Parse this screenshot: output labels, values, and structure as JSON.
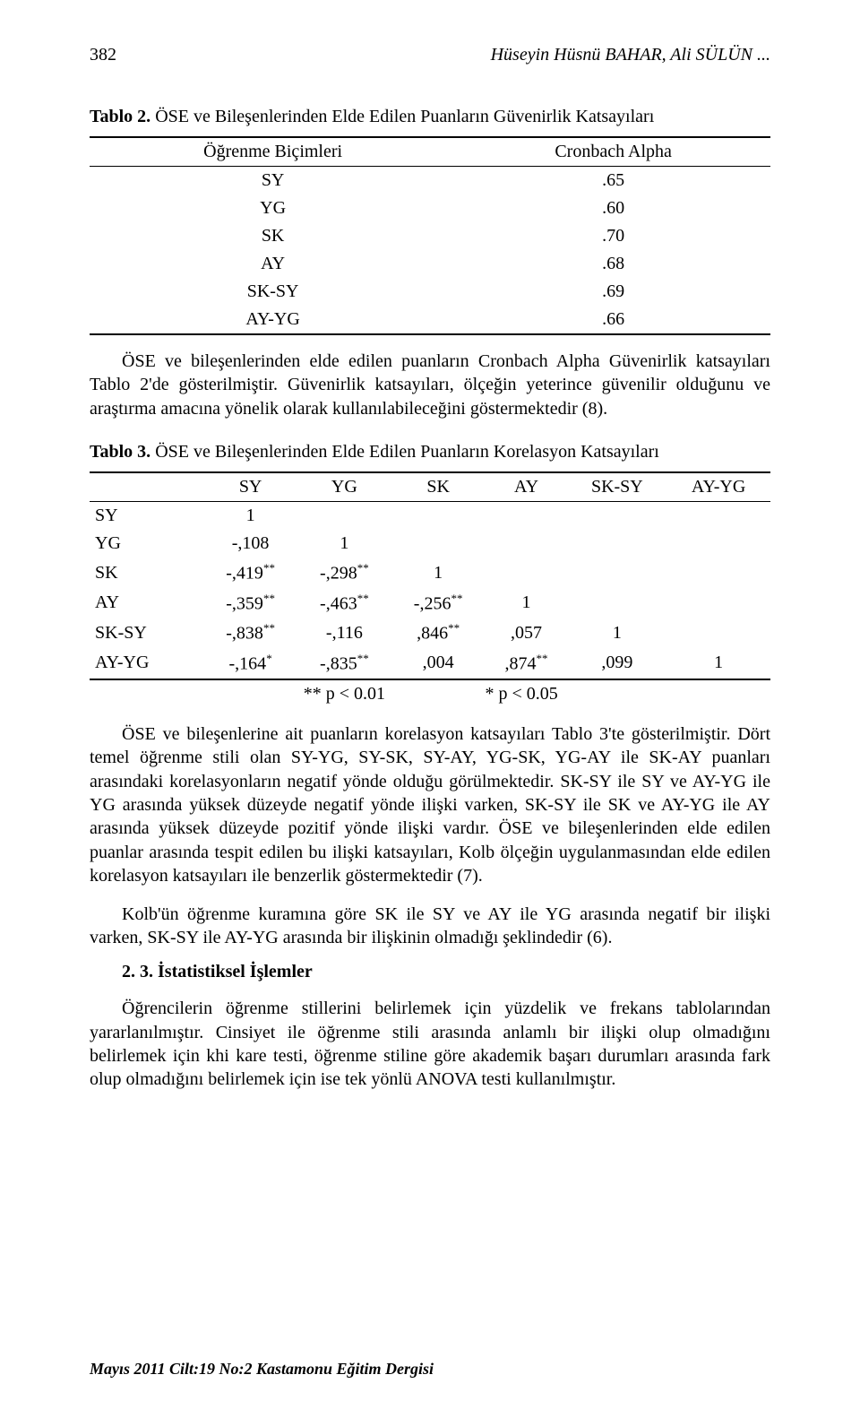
{
  "page_number": "382",
  "header_authors": "Hüseyin Hüsnü BAHAR, Ali SÜLÜN ...",
  "table2": {
    "caption_bold": "Tablo 2.",
    "caption_rest": " ÖSE ve Bileşenlerinden Elde Edilen Puanların Güvenirlik Katsayıları",
    "col1": "Öğrenme Biçimleri",
    "col2": "Cronbach Alpha",
    "rows": [
      {
        "c1": "SY",
        "c2": ".65"
      },
      {
        "c1": "YG",
        "c2": ".60"
      },
      {
        "c1": "SK",
        "c2": ".70"
      },
      {
        "c1": "AY",
        "c2": ".68"
      },
      {
        "c1": "SK-SY",
        "c2": ".69"
      },
      {
        "c1": "AY-YG",
        "c2": ".66"
      }
    ]
  },
  "para1": "ÖSE ve bileşenlerinden elde edilen puanların Cronbach Alpha Güvenirlik katsayıları Tablo 2'de gösterilmiştir. Güvenirlik katsayıları, ölçeğin yeterince güvenilir olduğunu ve araştırma amacına yönelik olarak kullanılabileceğini göstermektedir (8).",
  "table3": {
    "caption_bold": "Tablo 3.",
    "caption_rest": " ÖSE ve Bileşenlerinden Elde Edilen Puanların Korelasyon Katsayıları",
    "headers": [
      "",
      "SY",
      "YG",
      "SK",
      "AY",
      "SK-SY",
      "AY-YG"
    ],
    "rows": [
      {
        "label": "SY",
        "cells": [
          "1",
          "",
          "",
          "",
          "",
          ""
        ]
      },
      {
        "label": "YG",
        "cells": [
          "-,108",
          "1",
          "",
          "",
          "",
          ""
        ]
      },
      {
        "label": "SK",
        "cells": [
          "-,419",
          "-,298",
          "1",
          "",
          "",
          ""
        ],
        "sup": [
          "**",
          "**",
          "",
          "",
          "",
          ""
        ]
      },
      {
        "label": "AY",
        "cells": [
          "-,359",
          "-,463",
          "-,256",
          "1",
          "",
          ""
        ],
        "sup": [
          "**",
          "**",
          "**",
          "",
          "",
          ""
        ]
      },
      {
        "label": "SK-SY",
        "cells": [
          "-,838",
          "-,116",
          ",846",
          ",057",
          "1",
          ""
        ],
        "sup": [
          "**",
          "",
          "**",
          "",
          "",
          ""
        ]
      },
      {
        "label": "AY-YG",
        "cells": [
          "-,164",
          "-,835",
          ",004",
          ",874",
          ",099",
          "1"
        ],
        "sup": [
          "*",
          "**",
          "",
          "**",
          "",
          ""
        ]
      }
    ],
    "sig1": "** p < 0.01",
    "sig2": "* p < 0.05"
  },
  "para2": "ÖSE ve bileşenlerine ait puanların korelasyon katsayıları Tablo 3'te gösterilmiştir. Dört temel öğrenme stili olan SY-YG, SY-SK, SY-AY, YG-SK, YG-AY ile SK-AY puanları arasındaki korelasyonların negatif yönde olduğu görülmektedir. SK-SY ile SY ve AY-YG ile YG arasında yüksek düzeyde negatif yönde ilişki varken, SK-SY ile SK ve AY-YG ile AY arasında yüksek düzeyde pozitif yönde ilişki vardır. ÖSE ve bileşenlerinden elde edilen puanlar arasında tespit edilen bu ilişki katsayıları, Kolb ölçeğin uygulanmasından elde edilen korelasyon katsayıları ile benzerlik göstermektedir (7).",
  "para3": "Kolb'ün öğrenme kuramına göre SK ile SY ve AY ile YG arasında negatif bir ilişki varken, SK-SY ile AY-YG arasında bir ilişkinin olmadığı şeklindedir (6).",
  "heading": "2. 3. İstatistiksel İşlemler",
  "para4": "Öğrencilerin öğrenme stillerini belirlemek için yüzdelik ve frekans tablolarından yararlanılmıştır. Cinsiyet ile öğrenme stili arasında anlamlı bir ilişki olup olmadığını belirlemek için khi kare testi, öğrenme stiline göre akademik başarı durumları arasında fark olup olmadığını belirlemek için ise tek yönlü ANOVA testi kullanılmıştır.",
  "footer": "Mayıs 2011 Cilt:19 No:2 Kastamonu Eğitim Dergisi"
}
